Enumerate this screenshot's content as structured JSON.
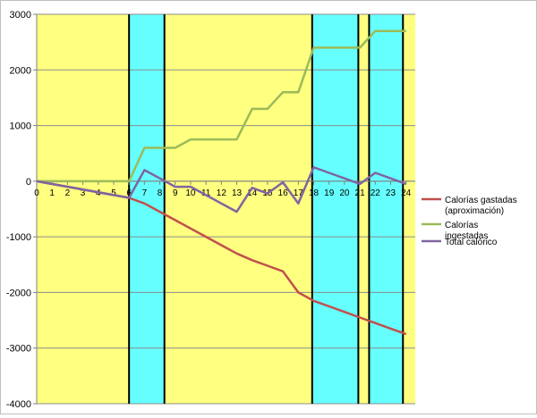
{
  "chart_data": {
    "type": "line",
    "title": "",
    "xlabel": "",
    "ylabel": "",
    "x": [
      0,
      1,
      2,
      3,
      4,
      5,
      6,
      7,
      8,
      9,
      10,
      11,
      12,
      13,
      14,
      15,
      16,
      17,
      18,
      19,
      20,
      21,
      22,
      23,
      24
    ],
    "ylim": [
      -4000,
      3000
    ],
    "yticks": [
      3000,
      2000,
      1000,
      0,
      -1000,
      -2000,
      -3000,
      -4000
    ],
    "grid": true,
    "legend": "right",
    "series": [
      {
        "name": "Calorías gastadas (aproximación)",
        "color": "#c0504d",
        "points": [
          [
            0,
            0
          ],
          [
            6,
            -300
          ],
          [
            7,
            -400
          ],
          [
            8,
            -550
          ],
          [
            9,
            -700
          ],
          [
            10,
            -850
          ],
          [
            11,
            -1000
          ],
          [
            12,
            -1150
          ],
          [
            13,
            -1300
          ],
          [
            14,
            -1420
          ],
          [
            15,
            -1520
          ],
          [
            16,
            -1620
          ],
          [
            17,
            -2000
          ],
          [
            18,
            -2150
          ],
          [
            19,
            -2250
          ],
          [
            20,
            -2350
          ],
          [
            21,
            -2450
          ],
          [
            22,
            -2550
          ],
          [
            23,
            -2650
          ],
          [
            24,
            -2750
          ]
        ]
      },
      {
        "name": "Calorías ingestadas",
        "color": "#9bbb59",
        "points": [
          [
            0,
            0
          ],
          [
            6,
            0
          ],
          [
            7,
            600
          ],
          [
            8,
            600
          ],
          [
            9,
            600
          ],
          [
            10,
            750
          ],
          [
            11,
            750
          ],
          [
            12,
            750
          ],
          [
            13,
            750
          ],
          [
            14,
            1300
          ],
          [
            15,
            1300
          ],
          [
            16,
            1600
          ],
          [
            17,
            1600
          ],
          [
            18,
            2400
          ],
          [
            19,
            2400
          ],
          [
            20,
            2400
          ],
          [
            21,
            2400
          ],
          [
            22,
            2700
          ],
          [
            23,
            2700
          ],
          [
            24,
            2700
          ]
        ]
      },
      {
        "name": "Total calórico",
        "color": "#8064a2",
        "points": [
          [
            0,
            0
          ],
          [
            6,
            -300
          ],
          [
            7,
            200
          ],
          [
            8,
            50
          ],
          [
            9,
            -100
          ],
          [
            10,
            -100
          ],
          [
            11,
            -250
          ],
          [
            12,
            -400
          ],
          [
            13,
            -550
          ],
          [
            14,
            -120
          ],
          [
            15,
            -220
          ],
          [
            16,
            -20
          ],
          [
            17,
            -400
          ],
          [
            18,
            250
          ],
          [
            19,
            150
          ],
          [
            20,
            50
          ],
          [
            21,
            -50
          ],
          [
            22,
            150
          ],
          [
            23,
            50
          ],
          [
            24,
            -50
          ]
        ]
      }
    ],
    "background_bands": [
      {
        "from": 0,
        "to": 6,
        "color": "#ffff80"
      },
      {
        "from": 6,
        "to": 8.3,
        "color": "#66ffff"
      },
      {
        "from": 8.3,
        "to": 17.9,
        "color": "#ffff80"
      },
      {
        "from": 17.9,
        "to": 20.9,
        "color": "#66ffff"
      },
      {
        "from": 20.9,
        "to": 21.6,
        "color": "#ffff80"
      },
      {
        "from": 21.6,
        "to": 23.8,
        "color": "#66ffff"
      },
      {
        "from": 23.8,
        "to": 24.6,
        "color": "#ffff80"
      }
    ],
    "vertical_markers": [
      6,
      8.3,
      17.9,
      20.9,
      21.6,
      23.8
    ]
  }
}
